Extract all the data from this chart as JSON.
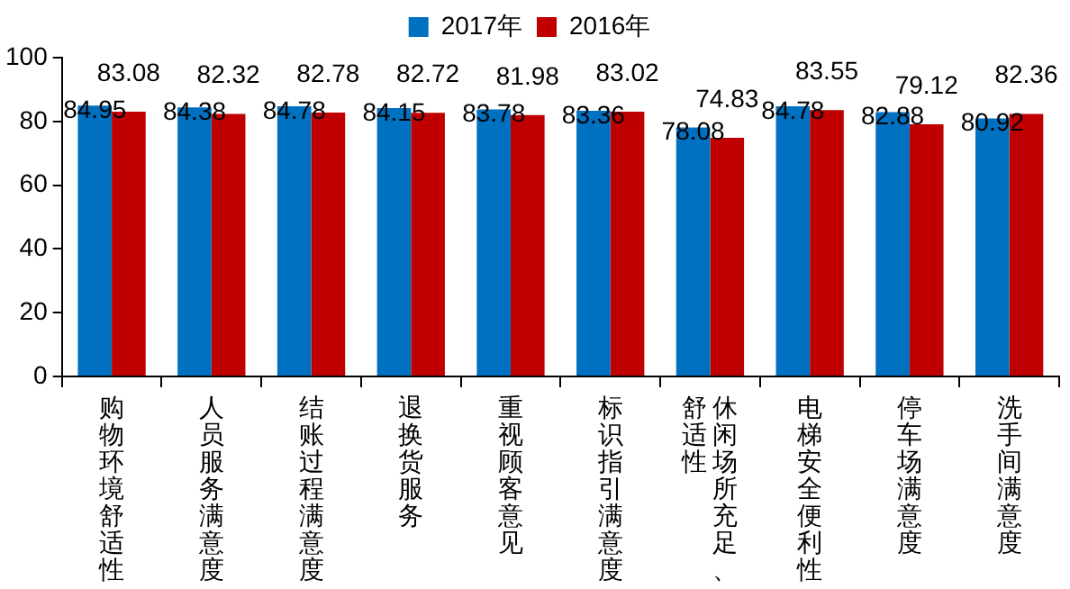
{
  "chart_data": {
    "type": "bar",
    "categories": [
      "购物环境舒适性",
      "人员服务满意度",
      "结账过程满意度",
      "退换货服务",
      "重视顾客意见",
      "标识指引满意度",
      "休闲场所充足、舒适性",
      "电梯安全便利性",
      "停车场满意度",
      "洗手间满意度"
    ],
    "series": [
      {
        "name": "2017年",
        "color": "#0070c0",
        "values": [
          84.95,
          84.38,
          84.78,
          84.15,
          83.78,
          83.36,
          78.08,
          84.78,
          82.88,
          80.92
        ]
      },
      {
        "name": "2016年",
        "color": "#c00000",
        "values": [
          83.08,
          82.32,
          82.78,
          82.72,
          81.98,
          83.02,
          74.83,
          83.55,
          79.12,
          82.36
        ]
      }
    ],
    "ylim": [
      0,
      100
    ],
    "yticks": [
      0,
      20,
      40,
      60,
      80,
      100
    ],
    "grid": false,
    "legend": "top",
    "data_labels": true
  }
}
